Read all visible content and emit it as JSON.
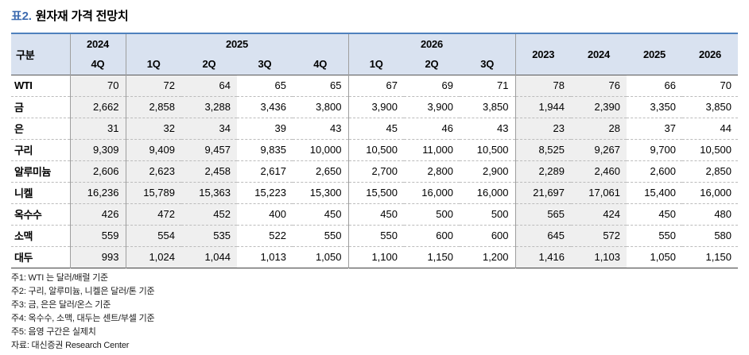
{
  "title": {
    "number": "표2.",
    "text": "원자재 가격 전망치"
  },
  "table": {
    "header": {
      "category": "구분",
      "groups": [
        {
          "label": "2024",
          "quarters": [
            "4Q"
          ]
        },
        {
          "label": "2025",
          "quarters": [
            "1Q",
            "2Q",
            "3Q",
            "4Q"
          ]
        },
        {
          "label": "2026",
          "quarters": [
            "1Q",
            "2Q",
            "3Q"
          ]
        }
      ],
      "annual": [
        "2023",
        "2024",
        "2025",
        "2026"
      ]
    },
    "rows": [
      {
        "label": "WTI",
        "values": [
          "70",
          "72",
          "64",
          "65",
          "65",
          "67",
          "69",
          "71",
          "78",
          "76",
          "66",
          "70"
        ]
      },
      {
        "label": "금",
        "values": [
          "2,662",
          "2,858",
          "3,288",
          "3,436",
          "3,800",
          "3,900",
          "3,900",
          "3,850",
          "1,944",
          "2,390",
          "3,350",
          "3,850"
        ]
      },
      {
        "label": "은",
        "values": [
          "31",
          "32",
          "34",
          "39",
          "43",
          "45",
          "46",
          "43",
          "23",
          "28",
          "37",
          "44"
        ]
      },
      {
        "label": "구리",
        "values": [
          "9,309",
          "9,409",
          "9,457",
          "9,835",
          "10,000",
          "10,500",
          "11,000",
          "10,500",
          "8,525",
          "9,267",
          "9,700",
          "10,500"
        ]
      },
      {
        "label": "알루미늄",
        "values": [
          "2,606",
          "2,623",
          "2,458",
          "2,617",
          "2,650",
          "2,700",
          "2,800",
          "2,900",
          "2,289",
          "2,460",
          "2,600",
          "2,850"
        ]
      },
      {
        "label": "니켈",
        "values": [
          "16,236",
          "15,789",
          "15,363",
          "15,223",
          "15,300",
          "15,500",
          "16,000",
          "16,000",
          "21,697",
          "17,061",
          "15,400",
          "16,000"
        ]
      },
      {
        "label": "옥수수",
        "values": [
          "426",
          "472",
          "452",
          "400",
          "450",
          "450",
          "500",
          "500",
          "565",
          "424",
          "450",
          "480"
        ]
      },
      {
        "label": "소맥",
        "values": [
          "559",
          "554",
          "535",
          "522",
          "550",
          "550",
          "600",
          "600",
          "645",
          "572",
          "550",
          "580"
        ]
      },
      {
        "label": "대두",
        "values": [
          "993",
          "1,024",
          "1,044",
          "1,013",
          "1,050",
          "1,100",
          "1,150",
          "1,200",
          "1,416",
          "1,103",
          "1,050",
          "1,150"
        ]
      }
    ],
    "shaded_value_columns": [
      0,
      1,
      2,
      8,
      9
    ],
    "group_end_columns": [
      0,
      4,
      7
    ]
  },
  "notes": [
    "주1: WTI 는 달러/배럴 기준",
    "주2: 구리, 알루미늄, 니켈은 달러/톤 기준",
    "주3: 금, 은은 달러/온스 기준",
    "주4: 옥수수, 소맥, 대두는 센트/부셀 기준",
    "주5: 음영 구간은 실제치"
  ],
  "source": "자료: 대신증권 Research Center",
  "colors": {
    "header_bg": "#d9e2f0",
    "shaded_bg": "#efefef",
    "top_border": "#4f81bd",
    "title_accent": "#3e6cb0"
  }
}
